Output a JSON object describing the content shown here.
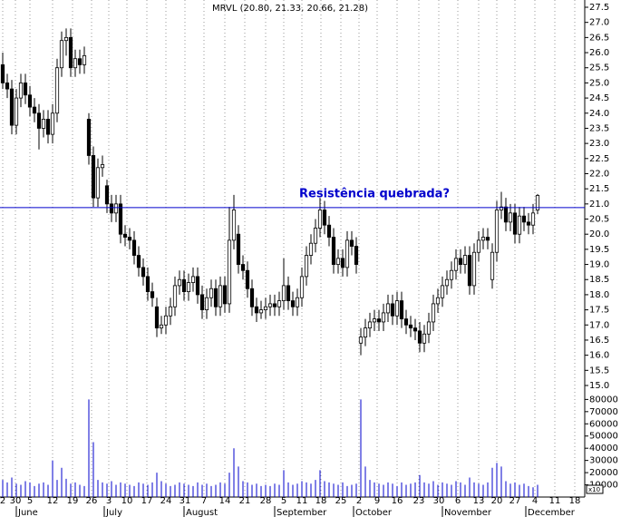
{
  "chart_data": {
    "type": "candlestick",
    "title": "MRVL (20.80, 21.33, 20.66, 21.28)",
    "annotation": "Resistência quebrada?",
    "resistance_line": 20.88,
    "volume_unit_label": "x10",
    "x": [
      0,
      1,
      2,
      3,
      4,
      5,
      6,
      7,
      8,
      9,
      10,
      11,
      12,
      13,
      14,
      15,
      16,
      17,
      18,
      19,
      20,
      21,
      22,
      23,
      24,
      25,
      26,
      27,
      28,
      29,
      30,
      31,
      32,
      33,
      34,
      35,
      36,
      37,
      38,
      39,
      40,
      41,
      42,
      43,
      44,
      45,
      46,
      47,
      48,
      49,
      50,
      51,
      52,
      53,
      54,
      55,
      56,
      57,
      58,
      59,
      60,
      61,
      62,
      63,
      64,
      65,
      66,
      67,
      68,
      69,
      70,
      71,
      72,
      73,
      74,
      75,
      76,
      77,
      78,
      79,
      80,
      81,
      82,
      83,
      84,
      85,
      86,
      87,
      88,
      89,
      90,
      91,
      92,
      93,
      94,
      95,
      96,
      97,
      98,
      99,
      100,
      101,
      102,
      103,
      104,
      105,
      106,
      107,
      108,
      109,
      110,
      111,
      112,
      113,
      114,
      115,
      116,
      117,
      118
    ],
    "open": [
      25.6,
      25.0,
      24.8,
      23.6,
      24.5,
      25.0,
      24.6,
      24.2,
      24.0,
      23.5,
      23.8,
      23.3,
      24.0,
      25.5,
      26.4,
      26.5,
      25.5,
      25.8,
      25.6,
      23.8,
      22.6,
      21.2,
      22.2,
      21.6,
      21.0,
      20.7,
      21.0,
      20.0,
      19.9,
      19.8,
      19.3,
      18.9,
      18.6,
      18.1,
      17.6,
      16.9,
      17.0,
      17.3,
      17.6,
      18.3,
      18.5,
      18.1,
      18.4,
      18.6,
      18.0,
      17.5,
      17.9,
      18.2,
      17.6,
      18.3,
      17.7,
      19.8,
      20.0,
      19.0,
      18.8,
      18.2,
      17.6,
      17.4,
      17.5,
      17.6,
      17.7,
      17.6,
      17.8,
      18.3,
      17.8,
      17.6,
      17.9,
      18.6,
      19.3,
      19.7,
      20.2,
      20.8,
      20.3,
      19.9,
      19.0,
      19.2,
      18.9,
      19.8,
      19.6,
      16.4,
      16.6,
      16.9,
      17.1,
      17.2,
      17.1,
      17.4,
      17.7,
      17.3,
      17.8,
      17.2,
      17.0,
      16.9,
      16.8,
      16.4,
      16.7,
      17.1,
      17.7,
      17.9,
      18.3,
      18.5,
      18.8,
      19.2,
      19.0,
      19.3,
      18.3,
      19.4,
      19.8,
      19.9,
      18.5,
      19.4,
      20.8,
      20.9,
      20.4,
      20.7,
      20.0,
      20.6,
      20.4,
      20.3,
      20.8
    ],
    "high": [
      26.0,
      25.3,
      25.1,
      24.8,
      25.3,
      25.3,
      24.9,
      24.5,
      24.3,
      24.1,
      24.1,
      24.3,
      25.8,
      26.7,
      26.8,
      26.8,
      26.1,
      26.1,
      26.2,
      24.0,
      22.9,
      22.5,
      22.6,
      21.8,
      21.3,
      21.3,
      21.3,
      20.3,
      20.2,
      20.1,
      19.6,
      19.2,
      18.9,
      18.4,
      17.9,
      17.3,
      17.6,
      17.9,
      18.6,
      18.8,
      18.8,
      18.7,
      18.9,
      18.9,
      18.3,
      18.2,
      18.5,
      18.5,
      18.6,
      18.6,
      20.9,
      21.3,
      20.3,
      19.3,
      19.1,
      18.5,
      17.9,
      17.8,
      17.9,
      18.0,
      18.0,
      18.1,
      19.2,
      18.6,
      18.1,
      18.2,
      18.9,
      19.6,
      20.0,
      20.5,
      21.2,
      21.1,
      20.6,
      20.2,
      19.5,
      19.5,
      20.1,
      20.1,
      19.9,
      16.9,
      17.2,
      17.4,
      17.5,
      17.5,
      17.7,
      18.0,
      18.0,
      18.1,
      18.1,
      17.5,
      17.3,
      17.2,
      17.1,
      17.0,
      17.4,
      18.0,
      18.2,
      18.6,
      18.8,
      19.1,
      19.5,
      19.5,
      19.6,
      19.6,
      19.7,
      20.1,
      20.2,
      20.2,
      19.7,
      21.1,
      21.4,
      21.2,
      21.0,
      21.0,
      20.9,
      20.9,
      20.7,
      21.0,
      21.33
    ],
    "low": [
      24.8,
      24.5,
      23.3,
      23.3,
      24.2,
      24.3,
      23.9,
      23.7,
      22.8,
      23.2,
      23.0,
      23.0,
      23.7,
      25.2,
      25.9,
      25.2,
      25.2,
      25.3,
      25.3,
      22.3,
      20.9,
      20.9,
      21.9,
      20.7,
      20.4,
      20.4,
      19.7,
      19.6,
      19.5,
      19.0,
      18.6,
      18.3,
      17.8,
      17.6,
      16.6,
      16.7,
      16.7,
      17.0,
      17.3,
      18.0,
      17.8,
      17.8,
      18.1,
      17.7,
      17.2,
      17.2,
      17.6,
      17.3,
      17.3,
      17.4,
      17.4,
      19.5,
      18.7,
      18.5,
      17.9,
      17.3,
      17.1,
      17.2,
      17.2,
      17.3,
      17.3,
      17.3,
      17.5,
      17.5,
      17.3,
      17.3,
      17.6,
      18.3,
      19.0,
      19.4,
      19.9,
      20.0,
      19.6,
      18.7,
      18.7,
      18.6,
      18.6,
      19.3,
      18.7,
      16.0,
      16.3,
      16.6,
      16.8,
      16.8,
      16.8,
      17.1,
      17.0,
      17.0,
      16.9,
      16.7,
      16.6,
      16.5,
      16.1,
      16.1,
      16.4,
      16.8,
      17.4,
      17.6,
      18.0,
      18.2,
      18.5,
      18.7,
      18.7,
      18.0,
      18.0,
      19.1,
      19.5,
      19.5,
      18.2,
      19.1,
      20.5,
      20.1,
      20.1,
      19.7,
      19.7,
      20.1,
      20.0,
      20.0,
      20.66
    ],
    "close": [
      25.0,
      24.8,
      23.6,
      24.5,
      25.0,
      24.6,
      24.2,
      24.0,
      23.5,
      23.8,
      23.3,
      24.0,
      25.5,
      26.4,
      26.5,
      25.5,
      25.8,
      25.6,
      25.9,
      22.6,
      21.2,
      22.2,
      22.3,
      21.0,
      20.7,
      21.0,
      20.0,
      19.9,
      19.8,
      19.3,
      18.9,
      18.6,
      18.1,
      17.9,
      16.9,
      17.0,
      17.3,
      17.6,
      18.3,
      18.5,
      18.1,
      18.4,
      18.6,
      18.0,
      17.5,
      17.9,
      18.2,
      17.6,
      18.3,
      17.7,
      19.8,
      20.8,
      19.0,
      18.8,
      18.2,
      17.6,
      17.4,
      17.5,
      17.6,
      17.7,
      17.6,
      17.8,
      18.3,
      17.8,
      17.6,
      17.9,
      18.6,
      19.3,
      19.7,
      20.2,
      20.8,
      20.3,
      19.9,
      19.0,
      19.2,
      18.9,
      19.8,
      19.6,
      19.0,
      16.6,
      16.9,
      17.1,
      17.2,
      17.1,
      17.4,
      17.7,
      17.3,
      17.8,
      17.2,
      17.0,
      16.9,
      16.8,
      16.4,
      16.7,
      17.1,
      17.7,
      17.9,
      18.3,
      18.5,
      18.8,
      19.2,
      19.0,
      19.3,
      18.3,
      19.4,
      19.8,
      19.9,
      19.8,
      19.4,
      20.8,
      20.9,
      20.4,
      20.7,
      20.0,
      20.6,
      20.4,
      20.3,
      20.7,
      21.28
    ],
    "volume": [
      14000,
      12000,
      16000,
      11000,
      10000,
      13000,
      12000,
      9000,
      11000,
      12000,
      10000,
      30000,
      14000,
      24000,
      15000,
      11000,
      12000,
      10000,
      9000,
      80000,
      45000,
      14000,
      12000,
      11000,
      13000,
      10000,
      12000,
      11000,
      10000,
      9000,
      12000,
      11000,
      10000,
      12000,
      20000,
      13000,
      11000,
      9000,
      10000,
      12000,
      11000,
      10000,
      9000,
      12000,
      10000,
      11000,
      9000,
      10000,
      12000,
      11000,
      20000,
      40000,
      25000,
      13000,
      12000,
      10000,
      11000,
      9000,
      10000,
      9000,
      11000,
      10000,
      22000,
      12000,
      10000,
      11000,
      13000,
      12000,
      11000,
      14000,
      22000,
      13000,
      12000,
      11000,
      10000,
      12000,
      9000,
      10000,
      11000,
      80000,
      25000,
      14000,
      12000,
      11000,
      10000,
      12000,
      11000,
      9000,
      12000,
      10000,
      11000,
      12000,
      18000,
      12000,
      11000,
      13000,
      10000,
      12000,
      11000,
      10000,
      13000,
      12000,
      10000,
      16000,
      12000,
      11000,
      10000,
      12000,
      24000,
      28000,
      25000,
      13000,
      11000,
      12000,
      10000,
      11000,
      9000,
      8000,
      10000
    ],
    "up_color": "#ffffff",
    "down_color": "#000000",
    "line_color": "#0000cc",
    "xlim": [
      -0.6,
      128.4
    ],
    "ylim": [
      14.79,
      27.74
    ],
    "vlim": [
      0,
      84000
    ],
    "xticks": [
      {
        "value": 0,
        "label": "2"
      },
      {
        "value": 2.8,
        "label": "30"
      },
      {
        "value": 6,
        "label": "5"
      },
      {
        "value": 11,
        "label": "12"
      },
      {
        "value": 15.4,
        "label": "19"
      },
      {
        "value": 19.6,
        "label": "26"
      },
      {
        "value": 23.4,
        "label": "3"
      },
      {
        "value": 27.4,
        "label": "10"
      },
      {
        "value": 31.8,
        "label": "17"
      },
      {
        "value": 36,
        "label": "24"
      },
      {
        "value": 40.2,
        "label": "31"
      },
      {
        "value": 44.4,
        "label": "7"
      },
      {
        "value": 49,
        "label": "14"
      },
      {
        "value": 53.4,
        "label": "21"
      },
      {
        "value": 58,
        "label": "28"
      },
      {
        "value": 62,
        "label": "5"
      },
      {
        "value": 66,
        "label": "11"
      },
      {
        "value": 70.2,
        "label": "18"
      },
      {
        "value": 74.6,
        "label": "25"
      },
      {
        "value": 78.6,
        "label": "2"
      },
      {
        "value": 82.6,
        "label": "9"
      },
      {
        "value": 87,
        "label": "16"
      },
      {
        "value": 91.8,
        "label": "23"
      },
      {
        "value": 96.2,
        "label": "30"
      },
      {
        "value": 100.4,
        "label": "6"
      },
      {
        "value": 105,
        "label": "13"
      },
      {
        "value": 109,
        "label": "20"
      },
      {
        "value": 113,
        "label": "27"
      },
      {
        "value": 117.4,
        "label": "4"
      },
      {
        "value": 121.8,
        "label": "11"
      },
      {
        "value": 126.2,
        "label": "18"
      }
    ],
    "month_ticks": [
      {
        "value": 3.4,
        "label": "June"
      },
      {
        "value": 22.8,
        "label": "July"
      },
      {
        "value": 40.4,
        "label": "August"
      },
      {
        "value": 60.4,
        "label": "September"
      },
      {
        "value": 77.8,
        "label": "October"
      },
      {
        "value": 97.4,
        "label": "November"
      },
      {
        "value": 115.8,
        "label": "December"
      }
    ],
    "yticks": [
      {
        "value": 15,
        "label": "15.0"
      },
      15.5,
      {
        "value": 16,
        "label": "16.0"
      },
      16.5,
      {
        "value": 17,
        "label": "17.0"
      },
      17.5,
      {
        "value": 18,
        "label": "18.0"
      },
      18.5,
      {
        "value": 19,
        "label": "19.0"
      },
      19.5,
      {
        "value": 20,
        "label": "20.0"
      },
      20.5,
      {
        "value": 21,
        "label": "21.0"
      },
      21.5,
      {
        "value": 22,
        "label": "22.0"
      },
      22.5,
      {
        "value": 23,
        "label": "23.0"
      },
      23.5,
      {
        "value": 24,
        "label": "24.0"
      },
      24.5,
      {
        "value": 25,
        "label": "25.0"
      },
      25.5,
      {
        "value": 26,
        "label": "26.0"
      },
      26.5,
      {
        "value": 27,
        "label": "27.0"
      },
      27.5
    ],
    "vticks": [
      10000,
      20000,
      30000,
      40000,
      50000,
      60000,
      70000,
      80000
    ]
  }
}
